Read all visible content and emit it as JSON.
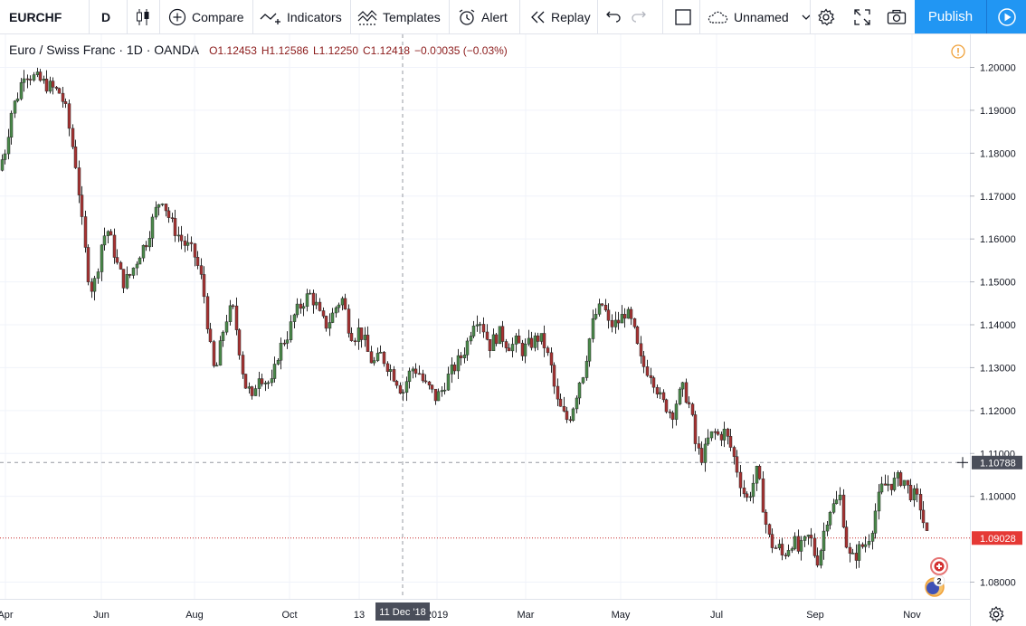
{
  "toolbar": {
    "symbol": "EURCHF",
    "interval": "D",
    "compare_label": "Compare",
    "indicators_label": "Indicators",
    "templates_label": "Templates",
    "alert_label": "Alert",
    "replay_label": "Replay",
    "layout_name": "Unnamed",
    "publish_label": "Publish"
  },
  "legend": {
    "title": "Euro / Swiss Franc · 1D · OANDA",
    "open": "O1.12453",
    "high": "H1.12586",
    "low": "L1.12250",
    "close": "C1.12418",
    "change": "−0.00035 (−0.03%)"
  },
  "colors": {
    "up": "#4a8a4a",
    "down": "#a83232",
    "wick": "#2b2b2b",
    "accent": "#2196f3",
    "last_price": "#c62828",
    "crosshair_label": "#4a4e5a"
  },
  "chart_data": {
    "type": "candlestick",
    "symbol": "EURCHF",
    "interval": "1D",
    "source": "OANDA",
    "ylim": [
      1.075,
      1.203
    ],
    "y_ticks": [
      "1.20000",
      "1.19000",
      "1.18000",
      "1.17000",
      "1.16000",
      "1.15000",
      "1.14000",
      "1.13000",
      "1.12000",
      "1.11000",
      "1.10000",
      "1.08000"
    ],
    "x_ticks": [
      "Apr",
      "Jun",
      "Aug",
      "Oct",
      "13",
      "2019",
      "Mar",
      "May",
      "Jul",
      "Sep",
      "Nov"
    ],
    "crosshair": {
      "price": "1.10788",
      "date": "11 Dec '18"
    },
    "last_price": "1.09028",
    "path": [
      [
        0,
        1.176
      ],
      [
        8,
        1.18
      ],
      [
        16,
        1.19
      ],
      [
        22,
        1.193
      ],
      [
        30,
        1.199
      ],
      [
        38,
        1.198
      ],
      [
        46,
        1.197
      ],
      [
        54,
        1.196
      ],
      [
        62,
        1.195
      ],
      [
        70,
        1.194
      ],
      [
        76,
        1.19
      ],
      [
        82,
        1.183
      ],
      [
        88,
        1.176
      ],
      [
        93,
        1.165
      ],
      [
        98,
        1.156
      ],
      [
        102,
        1.15
      ],
      [
        106,
        1.148
      ],
      [
        110,
        1.152
      ],
      [
        116,
        1.16
      ],
      [
        122,
        1.162
      ],
      [
        128,
        1.158
      ],
      [
        134,
        1.153
      ],
      [
        140,
        1.15
      ],
      [
        146,
        1.151
      ],
      [
        152,
        1.154
      ],
      [
        158,
        1.157
      ],
      [
        164,
        1.159
      ],
      [
        170,
        1.163
      ],
      [
        176,
        1.167
      ],
      [
        182,
        1.17
      ],
      [
        188,
        1.166
      ],
      [
        194,
        1.163
      ],
      [
        200,
        1.161
      ],
      [
        206,
        1.159
      ],
      [
        212,
        1.158
      ],
      [
        218,
        1.156
      ],
      [
        224,
        1.152
      ],
      [
        228,
        1.148
      ],
      [
        232,
        1.141
      ],
      [
        236,
        1.134
      ],
      [
        240,
        1.129
      ],
      [
        244,
        1.131
      ],
      [
        248,
        1.137
      ],
      [
        254,
        1.142
      ],
      [
        260,
        1.144
      ],
      [
        266,
        1.137
      ],
      [
        270,
        1.131
      ],
      [
        274,
        1.126
      ],
      [
        278,
        1.125
      ],
      [
        282,
        1.122
      ],
      [
        288,
        1.129
      ],
      [
        296,
        1.127
      ],
      [
        304,
        1.126
      ],
      [
        310,
        1.133
      ],
      [
        316,
        1.136
      ],
      [
        322,
        1.138
      ],
      [
        328,
        1.142
      ],
      [
        334,
        1.144
      ],
      [
        340,
        1.146
      ],
      [
        346,
        1.147
      ],
      [
        352,
        1.145
      ],
      [
        358,
        1.141
      ],
      [
        364,
        1.14
      ],
      [
        370,
        1.142
      ],
      [
        376,
        1.145
      ],
      [
        382,
        1.146
      ],
      [
        388,
        1.14
      ],
      [
        394,
        1.137
      ],
      [
        400,
        1.139
      ],
      [
        406,
        1.136
      ],
      [
        412,
        1.132
      ],
      [
        418,
        1.131
      ],
      [
        424,
        1.133
      ],
      [
        430,
        1.131
      ],
      [
        436,
        1.129
      ],
      [
        442,
        1.127
      ],
      [
        448,
        1.124
      ],
      [
        454,
        1.128
      ],
      [
        460,
        1.13
      ],
      [
        466,
        1.129
      ],
      [
        472,
        1.126
      ],
      [
        478,
        1.125
      ],
      [
        484,
        1.123
      ],
      [
        490,
        1.124
      ],
      [
        496,
        1.127
      ],
      [
        502,
        1.129
      ],
      [
        508,
        1.131
      ],
      [
        514,
        1.133
      ],
      [
        520,
        1.136
      ],
      [
        526,
        1.141
      ],
      [
        532,
        1.142
      ],
      [
        538,
        1.139
      ],
      [
        544,
        1.135
      ],
      [
        550,
        1.137
      ],
      [
        556,
        1.138
      ],
      [
        562,
        1.136
      ],
      [
        568,
        1.135
      ],
      [
        574,
        1.136
      ],
      [
        580,
        1.134
      ],
      [
        586,
        1.135
      ],
      [
        592,
        1.136
      ],
      [
        598,
        1.137
      ],
      [
        604,
        1.136
      ],
      [
        608,
        1.133
      ],
      [
        612,
        1.13
      ],
      [
        616,
        1.125
      ],
      [
        620,
        1.121
      ],
      [
        624,
        1.12
      ],
      [
        628,
        1.118
      ],
      [
        632,
        1.118
      ],
      [
        638,
        1.122
      ],
      [
        644,
        1.127
      ],
      [
        648,
        1.129
      ],
      [
        652,
        1.134
      ],
      [
        656,
        1.138
      ],
      [
        660,
        1.142
      ],
      [
        664,
        1.143
      ],
      [
        670,
        1.145
      ],
      [
        676,
        1.14
      ],
      [
        682,
        1.14
      ],
      [
        688,
        1.141
      ],
      [
        694,
        1.143
      ],
      [
        700,
        1.141
      ],
      [
        706,
        1.137
      ],
      [
        710,
        1.132
      ],
      [
        716,
        1.13
      ],
      [
        722,
        1.129
      ],
      [
        728,
        1.126
      ],
      [
        734,
        1.122
      ],
      [
        740,
        1.121
      ],
      [
        746,
        1.119
      ],
      [
        752,
        1.123
      ],
      [
        758,
        1.125
      ],
      [
        764,
        1.122
      ],
      [
        768,
        1.118
      ],
      [
        772,
        1.112
      ],
      [
        776,
        1.11
      ],
      [
        780,
        1.109
      ],
      [
        786,
        1.113
      ],
      [
        792,
        1.115
      ],
      [
        798,
        1.114
      ],
      [
        804,
        1.115
      ],
      [
        810,
        1.112
      ],
      [
        816,
        1.108
      ],
      [
        822,
        1.103
      ],
      [
        828,
        1.099
      ],
      [
        834,
        1.102
      ],
      [
        840,
        1.106
      ],
      [
        844,
        1.101
      ],
      [
        848,
        1.096
      ],
      [
        852,
        1.091
      ],
      [
        856,
        1.089
      ],
      [
        860,
        1.088
      ],
      [
        864,
        1.088
      ],
      [
        868,
        1.086
      ],
      [
        874,
        1.088
      ],
      [
        880,
        1.09
      ],
      [
        886,
        1.087
      ],
      [
        892,
        1.089
      ],
      [
        898,
        1.091
      ],
      [
        904,
        1.086
      ],
      [
        908,
        1.085
      ],
      [
        912,
        1.09
      ],
      [
        916,
        1.094
      ],
      [
        920,
        1.097
      ],
      [
        926,
        1.098
      ],
      [
        932,
        1.1
      ],
      [
        936,
        1.093
      ],
      [
        940,
        1.087
      ],
      [
        944,
        1.085
      ],
      [
        948,
        1.086
      ],
      [
        954,
        1.088
      ],
      [
        960,
        1.089
      ],
      [
        966,
        1.092
      ],
      [
        972,
        1.098
      ],
      [
        978,
        1.102
      ],
      [
        984,
        1.103
      ],
      [
        990,
        1.103
      ],
      [
        996,
        1.104
      ],
      [
        1002,
        1.104
      ],
      [
        1008,
        1.101
      ],
      [
        1014,
        1.1
      ],
      [
        1020,
        1.098
      ],
      [
        1026,
        1.092
      ],
      [
        1028,
        1.0903
      ]
    ]
  }
}
